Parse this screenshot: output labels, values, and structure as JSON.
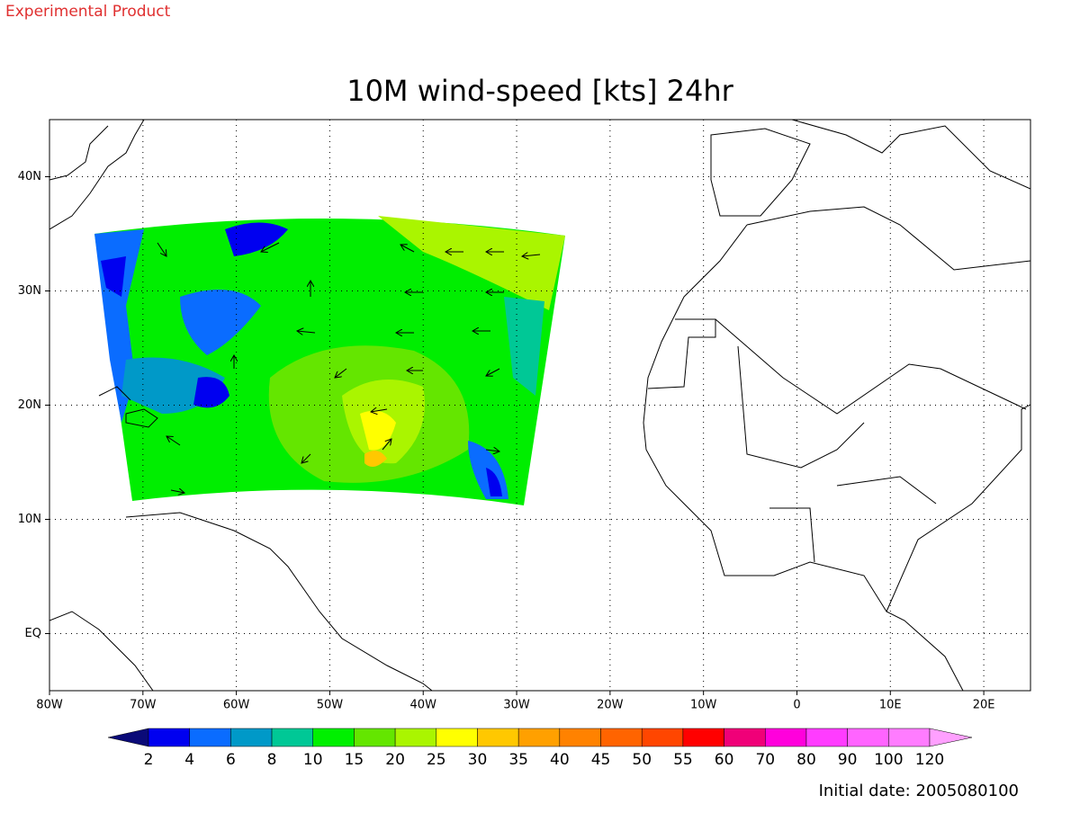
{
  "header": {
    "note": "Experimental Product"
  },
  "footer": {
    "note": "Initial date: 2005080100"
  },
  "chart_data": {
    "type": "map",
    "title": "10M wind-speed [kts] 24hr",
    "xlim": [
      -80,
      25
    ],
    "ylim": [
      -5,
      45
    ],
    "grid": true,
    "xticks": [
      {
        "value": -80,
        "label": "80W"
      },
      {
        "value": -70,
        "label": "70W"
      },
      {
        "value": -60,
        "label": "60W"
      },
      {
        "value": -50,
        "label": "50W"
      },
      {
        "value": -40,
        "label": "40W"
      },
      {
        "value": -30,
        "label": "30W"
      },
      {
        "value": -20,
        "label": "20W"
      },
      {
        "value": -10,
        "label": "10W"
      },
      0,
      {
        "value": 10,
        "label": "10E"
      },
      {
        "value": 20,
        "label": "20E"
      }
    ],
    "yticks": [
      {
        "value": 0,
        "label": "EQ"
      },
      {
        "value": 10,
        "label": "10N"
      },
      {
        "value": 20,
        "label": "20N"
      },
      {
        "value": 30,
        "label": "30N"
      },
      {
        "value": 40,
        "label": "40N"
      }
    ],
    "colorbar": {
      "levels": [
        2,
        4,
        6,
        8,
        10,
        15,
        20,
        25,
        30,
        35,
        40,
        45,
        50,
        55,
        60,
        70,
        80,
        90,
        100,
        120
      ],
      "colors": [
        "#0a0a78",
        "#0000f0",
        "#0a6cff",
        "#0099c8",
        "#00c896",
        "#00f000",
        "#64e600",
        "#aaf500",
        "#ffff00",
        "#ffc800",
        "#ffa000",
        "#ff8200",
        "#ff6400",
        "#ff4600",
        "#ff0000",
        "#f00078",
        "#ff00dc",
        "#ff3cff",
        "#ff64ff",
        "#ff7cff",
        "#ffa0ff"
      ]
    }
  }
}
